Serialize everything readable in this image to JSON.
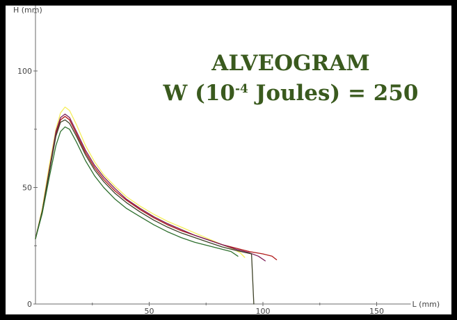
{
  "chart_data": {
    "type": "line",
    "title_line1": "ALVEOGRAM",
    "title_line2": {
      "prefix": "W (10",
      "exponent": "-4",
      "suffix": " Joules) = 250"
    },
    "xlabel": "L (mm)",
    "ylabel": "H (mm)",
    "xlim": [
      0,
      165
    ],
    "ylim": [
      0,
      125
    ],
    "xticks": [
      50,
      100,
      150
    ],
    "yticks": [
      0,
      50,
      100
    ],
    "grid": false,
    "series": [
      {
        "color": "#f5ee5a",
        "x": [
          0,
          3,
          6,
          9,
          11,
          13,
          15,
          18,
          22,
          26,
          30,
          35,
          40,
          46,
          52,
          58,
          64,
          70,
          76,
          82,
          86,
          90,
          92
        ],
        "y": [
          28,
          41,
          59,
          75,
          82,
          84.5,
          83,
          77,
          68,
          61,
          55.5,
          50.5,
          46,
          42,
          38.5,
          35.5,
          33,
          30.5,
          28,
          25.5,
          24,
          22,
          20
        ]
      },
      {
        "color": "#b01818",
        "x": [
          0,
          3,
          6,
          9,
          11,
          13,
          15,
          18,
          22,
          26,
          30,
          35,
          40,
          46,
          52,
          58,
          64,
          70,
          76,
          82,
          88,
          94,
          100,
          104,
          106
        ],
        "y": [
          28,
          40,
          57,
          73,
          79,
          80.5,
          79,
          73,
          65,
          58.5,
          53.5,
          48.5,
          44.5,
          40.5,
          37,
          34,
          31.5,
          29.5,
          27.5,
          25.5,
          24,
          22.5,
          21.5,
          20.5,
          19
        ]
      },
      {
        "color": "#7a1a55",
        "x": [
          0,
          3,
          6,
          9,
          11,
          13,
          15,
          18,
          22,
          26,
          30,
          35,
          40,
          46,
          52,
          58,
          64,
          70,
          76,
          82,
          88,
          94,
          98,
          101
        ],
        "y": [
          28,
          40,
          57,
          74,
          80,
          81.5,
          80,
          74,
          66,
          59.5,
          54.5,
          49.5,
          45,
          41,
          37.5,
          34.5,
          32,
          29.5,
          27.5,
          25.5,
          23.5,
          22,
          20.5,
          18.5
        ]
      },
      {
        "color": "#3e4228",
        "x": [
          0,
          3,
          6,
          9,
          11,
          13,
          15,
          18,
          22,
          26,
          30,
          35,
          40,
          46,
          52,
          58,
          64,
          70,
          76,
          82,
          88,
          95,
          96
        ],
        "y": [
          28,
          40,
          56,
          72,
          78,
          79,
          77.5,
          72,
          64,
          57.5,
          52.5,
          47.5,
          43.5,
          39.5,
          36,
          33,
          30.5,
          28.5,
          26.5,
          24.5,
          23,
          21.5,
          0
        ]
      },
      {
        "color": "#2c6e2c",
        "x": [
          0,
          3,
          6,
          9,
          11,
          13,
          15,
          18,
          22,
          26,
          30,
          35,
          40,
          46,
          52,
          58,
          64,
          70,
          76,
          82,
          86,
          89
        ],
        "y": [
          28,
          39,
          54,
          68,
          74,
          76,
          75,
          69.5,
          61.5,
          55,
          50,
          45,
          41,
          37.5,
          34,
          31,
          28.5,
          26.5,
          25,
          23.5,
          22.5,
          20.5
        ]
      }
    ]
  }
}
